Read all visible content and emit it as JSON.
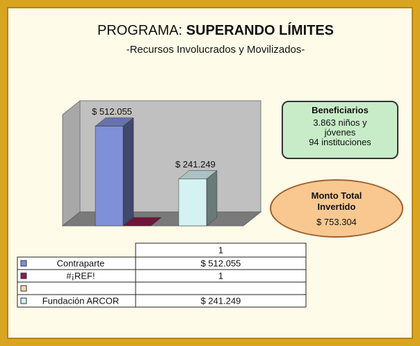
{
  "title_prefix": "PROGRAMA:",
  "title_bold": "SUPERANDO LÍMITES",
  "subtitle": "-Recursos Involucrados y Movilizados-",
  "chart_data": {
    "type": "bar3d",
    "categories": [
      "1"
    ],
    "ylim": [
      0,
      600000
    ],
    "series": [
      {
        "name": "Contraparte",
        "color": "#7f8fd8",
        "values": [
          512055
        ],
        "value_labels": [
          "$ 512.055"
        ]
      },
      {
        "name": "#¡REF!",
        "color": "#8b1a4a",
        "values": [
          1
        ]
      },
      {
        "name": null,
        "color": "#f4d8b0",
        "values": [
          null
        ]
      },
      {
        "name": "Fundación ARCOR",
        "color": "#d4f2f2",
        "values": [
          241249
        ],
        "value_labels": [
          "$ 241.249"
        ]
      }
    ]
  },
  "beneficiarios": {
    "title": "Beneficiarios",
    "lines": [
      "3.863 niños y jóvenes",
      "94 instituciones"
    ]
  },
  "monto": {
    "title": "Monto Total Invertido",
    "value": "$ 753.304"
  }
}
